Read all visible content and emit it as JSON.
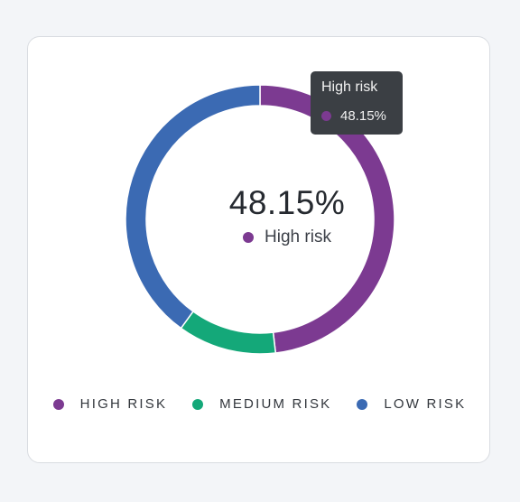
{
  "chart_data": {
    "type": "pie",
    "style": "donut",
    "categories": [
      "HIGH RISK",
      "MEDIUM RISK",
      "LOW RISK"
    ],
    "values": [
      48.15,
      11.85,
      40.0
    ],
    "colors": [
      "#7c3a91",
      "#14a879",
      "#3b6ab3"
    ],
    "legend": "bottom",
    "center": {
      "value": "48.15%",
      "label": "High risk"
    },
    "tooltip": {
      "title": "High risk",
      "value": "48.15%"
    }
  }
}
